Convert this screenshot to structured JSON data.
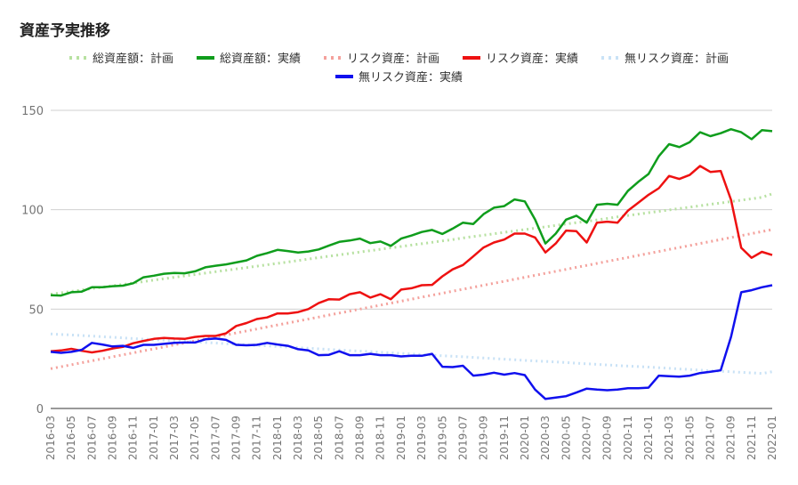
{
  "chart_data": {
    "type": "line",
    "title": "資産予実推移",
    "xlabel": "",
    "ylabel": "",
    "ylim": [
      0,
      150
    ],
    "y_ticks": [
      0,
      50,
      100,
      150
    ],
    "grid": true,
    "legend_position": "top",
    "x": [
      "2016-03",
      "2016-04",
      "2016-05",
      "2016-06",
      "2016-07",
      "2016-08",
      "2016-09",
      "2016-10",
      "2016-11",
      "2016-12",
      "2017-01",
      "2017-02",
      "2017-03",
      "2017-04",
      "2017-05",
      "2017-06",
      "2017-07",
      "2017-08",
      "2017-09",
      "2017-10",
      "2017-11",
      "2017-12",
      "2018-01",
      "2018-02",
      "2018-03",
      "2018-04",
      "2018-05",
      "2018-06",
      "2018-07",
      "2018-08",
      "2018-09",
      "2018-10",
      "2018-11",
      "2018-12",
      "2019-01",
      "2019-02",
      "2019-03",
      "2019-04",
      "2019-05",
      "2019-06",
      "2019-07",
      "2019-08",
      "2019-09",
      "2019-10",
      "2019-11",
      "2019-12",
      "2020-01",
      "2020-02",
      "2020-03",
      "2020-04",
      "2020-05",
      "2020-06",
      "2020-07",
      "2020-08",
      "2020-09",
      "2020-10",
      "2020-11",
      "2020-12",
      "2021-01",
      "2021-02",
      "2021-03",
      "2021-04",
      "2021-05",
      "2021-06",
      "2021-07",
      "2021-08",
      "2021-09",
      "2021-10",
      "2021-11",
      "2021-12",
      "2022-01"
    ],
    "x_tick_labels": [
      "2016-03",
      "2016-05",
      "2016-07",
      "2016-09",
      "2016-11",
      "2017-01",
      "2017-03",
      "2017-05",
      "2017-07",
      "2017-09",
      "2017-11",
      "2018-01",
      "2018-03",
      "2018-05",
      "2018-07",
      "2018-09",
      "2018-11",
      "2019-01",
      "2019-03",
      "2019-05",
      "2019-07",
      "2019-09",
      "2019-11",
      "2020-01",
      "2020-03",
      "2020-05",
      "2020-07",
      "2020-09",
      "2020-11",
      "2021-01",
      "2021-03",
      "2021-05",
      "2021-07",
      "2021-09",
      "2021-11",
      "2022-01"
    ],
    "series": [
      {
        "name": "総資産額：計画",
        "color": "#b7e1a1",
        "style": "dotted",
        "values": [
          57.5,
          58.2,
          58.9,
          59.6,
          60.3,
          61.0,
          61.7,
          62.4,
          63.1,
          63.8,
          64.6,
          65.3,
          66.0,
          66.7,
          67.4,
          68.1,
          68.8,
          69.5,
          70.2,
          70.9,
          71.6,
          72.3,
          73.0,
          73.7,
          74.4,
          75.2,
          75.9,
          76.6,
          77.3,
          78.0,
          78.7,
          79.4,
          80.1,
          80.8,
          81.5,
          82.2,
          82.9,
          83.6,
          84.3,
          85.0,
          85.8,
          86.5,
          87.2,
          87.9,
          88.6,
          89.3,
          90.0,
          90.7,
          91.4,
          92.1,
          92.8,
          93.5,
          94.2,
          94.9,
          95.6,
          96.4,
          97.1,
          97.8,
          98.5,
          99.2,
          99.9,
          100.6,
          101.3,
          102.0,
          102.7,
          103.4,
          104.1,
          104.8,
          105.5,
          106.2,
          108.0
        ]
      },
      {
        "name": "総資産額：実績",
        "color": "#0f9d1c",
        "style": "solid",
        "values": [
          57,
          56.8,
          58.5,
          58.8,
          61,
          61,
          61.5,
          61.8,
          63,
          66,
          66.8,
          67.8,
          68.2,
          68,
          69,
          71,
          71.8,
          72.5,
          73.5,
          74.5,
          76.8,
          78.2,
          79.8,
          79.2,
          78.5,
          79,
          80,
          82,
          83.8,
          84.5,
          85.5,
          83.2,
          84,
          81.8,
          85.5,
          87,
          88.8,
          89.8,
          87.8,
          90.5,
          93.5,
          92.8,
          97.8,
          101,
          101.8,
          105.2,
          104.2,
          95,
          83,
          88,
          95,
          97,
          93.5,
          102.5,
          103,
          102.5,
          109.5,
          114,
          118,
          127,
          133,
          131.5,
          134,
          139,
          137,
          138.5,
          140.5,
          139,
          135.5,
          140,
          139.5
        ]
      },
      {
        "name": "リスク資産：計画",
        "color": "#f4a19c",
        "style": "dotted",
        "values": [
          20,
          21,
          22,
          23,
          24,
          25,
          26,
          27,
          28,
          29,
          30,
          31,
          32,
          33,
          34,
          35,
          36,
          37,
          38,
          39,
          40,
          41,
          42,
          43,
          44,
          45,
          46,
          47,
          48,
          49,
          50,
          51,
          52,
          53,
          54,
          55,
          56,
          57,
          58,
          59,
          60,
          61,
          62,
          63,
          64,
          65,
          66,
          67,
          68,
          69,
          70,
          71,
          72,
          73,
          74,
          75,
          76,
          77,
          78,
          79,
          80,
          81,
          82,
          83,
          84,
          85,
          86,
          87,
          88,
          89,
          90
        ]
      },
      {
        "name": "リスク資産：実績",
        "color": "#ee1111",
        "style": "solid",
        "values": [
          28.8,
          29.2,
          30,
          29,
          28.2,
          29,
          30.2,
          31,
          32.8,
          34,
          35,
          35.5,
          35.2,
          35,
          36,
          36.5,
          36.5,
          37.8,
          41.5,
          43,
          45,
          45.8,
          47.8,
          47.8,
          48.5,
          50,
          53,
          55,
          54.8,
          57.5,
          58.5,
          55.8,
          57.5,
          55,
          59.8,
          60.5,
          62,
          62.2,
          66.5,
          70,
          72.2,
          76.5,
          81,
          83.5,
          85,
          88,
          88,
          86,
          78.5,
          83,
          89.5,
          89.2,
          83.5,
          93.5,
          94,
          93.5,
          99.5,
          103.5,
          107.5,
          110.8,
          117,
          115.5,
          117.5,
          122,
          119,
          119.5,
          105,
          80.8,
          75.8,
          78.8,
          77.2
        ]
      },
      {
        "name": "無リスク資産：計画",
        "color": "#c9e2f6",
        "style": "dotted",
        "values": [
          37.5,
          37.2,
          37,
          36.7,
          36.4,
          36.1,
          35.8,
          35.5,
          35.2,
          34.9,
          34.6,
          34.3,
          34.1,
          33.8,
          33.5,
          33.2,
          32.9,
          32.6,
          32.3,
          32,
          31.7,
          31.5,
          31.2,
          30.9,
          30.6,
          30.3,
          30,
          29.7,
          29.4,
          29.1,
          28.9,
          28.6,
          28.3,
          28,
          27.7,
          27.4,
          27.1,
          26.8,
          26.5,
          26.3,
          26,
          25.7,
          25.4,
          25.1,
          24.8,
          24.5,
          24.2,
          23.9,
          23.7,
          23.4,
          23.1,
          22.8,
          22.5,
          22.2,
          21.9,
          21.6,
          21.3,
          21.1,
          20.8,
          20.5,
          20.2,
          19.9,
          19.6,
          19.3,
          19,
          18.7,
          18.5,
          18.2,
          17.9,
          17.6,
          18.5
        ]
      },
      {
        "name": "無リスク資産：実績",
        "color": "#1010ee",
        "style": "solid",
        "values": [
          28.5,
          28,
          28.5,
          29.5,
          33,
          32.2,
          31.2,
          31.5,
          30.5,
          32,
          32,
          32.5,
          33,
          33.2,
          33.2,
          34.8,
          35.2,
          34.5,
          32,
          31.8,
          32,
          33,
          32.2,
          31.5,
          29.8,
          29.2,
          26.8,
          27,
          28.8,
          26.8,
          26.8,
          27.5,
          26.8,
          26.8,
          26.2,
          26.5,
          26.5,
          27.5,
          21,
          20.8,
          21.5,
          16.5,
          17,
          18,
          17,
          17.8,
          16.8,
          9.5,
          4.8,
          5.5,
          6.2,
          8,
          10,
          9.5,
          9.2,
          9.5,
          10.2,
          10.2,
          10.5,
          16.5,
          16.2,
          16,
          16.5,
          17.8,
          18.5,
          19.2,
          36,
          58.5,
          59.5,
          61,
          62
        ]
      }
    ]
  }
}
